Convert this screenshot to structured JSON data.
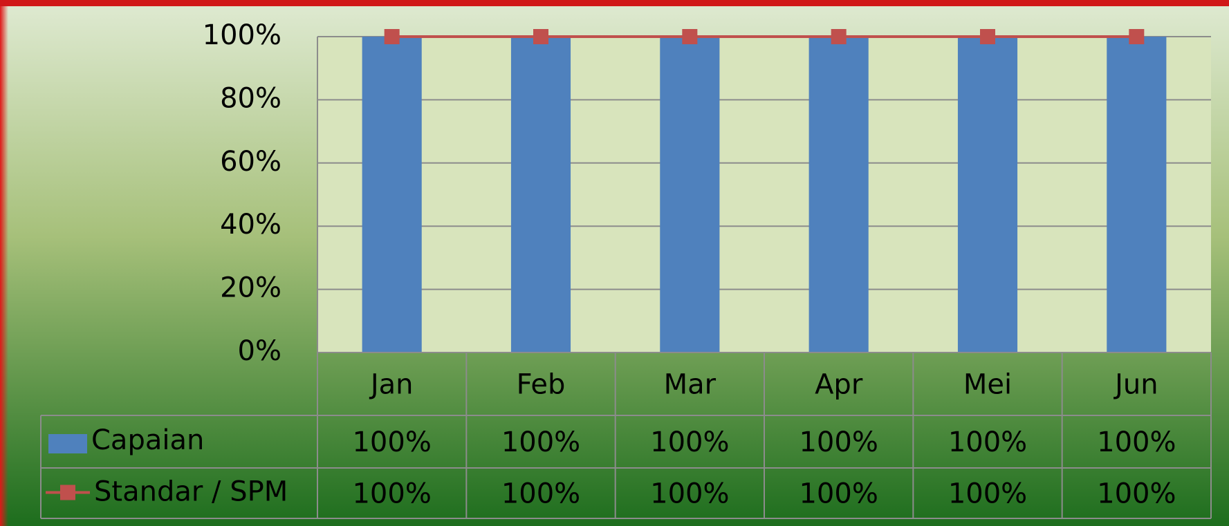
{
  "chart_data": {
    "type": "bar",
    "categories": [
      "Jan",
      "Feb",
      "Mar",
      "Apr",
      "Mei",
      "Jun"
    ],
    "series": [
      {
        "name": "Capaian",
        "type": "bar",
        "color": "#4f81bd",
        "values": [
          100,
          100,
          100,
          100,
          100,
          100
        ],
        "value_labels": [
          "100%",
          "100%",
          "100%",
          "100%",
          "100%",
          "100%"
        ]
      },
      {
        "name": "Standar / SPM",
        "type": "line",
        "color": "#c0504d",
        "values": [
          100,
          100,
          100,
          100,
          100,
          100
        ],
        "value_labels": [
          "100%",
          "100%",
          "100%",
          "100%",
          "100%",
          "100%"
        ]
      }
    ],
    "ylim": [
      0,
      100
    ],
    "yticks": [
      {
        "value": 0,
        "label": "0%"
      },
      {
        "value": 20,
        "label": "20%"
      },
      {
        "value": 40,
        "label": "40%"
      },
      {
        "value": 60,
        "label": "60%"
      },
      {
        "value": 80,
        "label": "80%"
      },
      {
        "value": 100,
        "label": "100%"
      }
    ],
    "grid": true,
    "data_table": true
  }
}
